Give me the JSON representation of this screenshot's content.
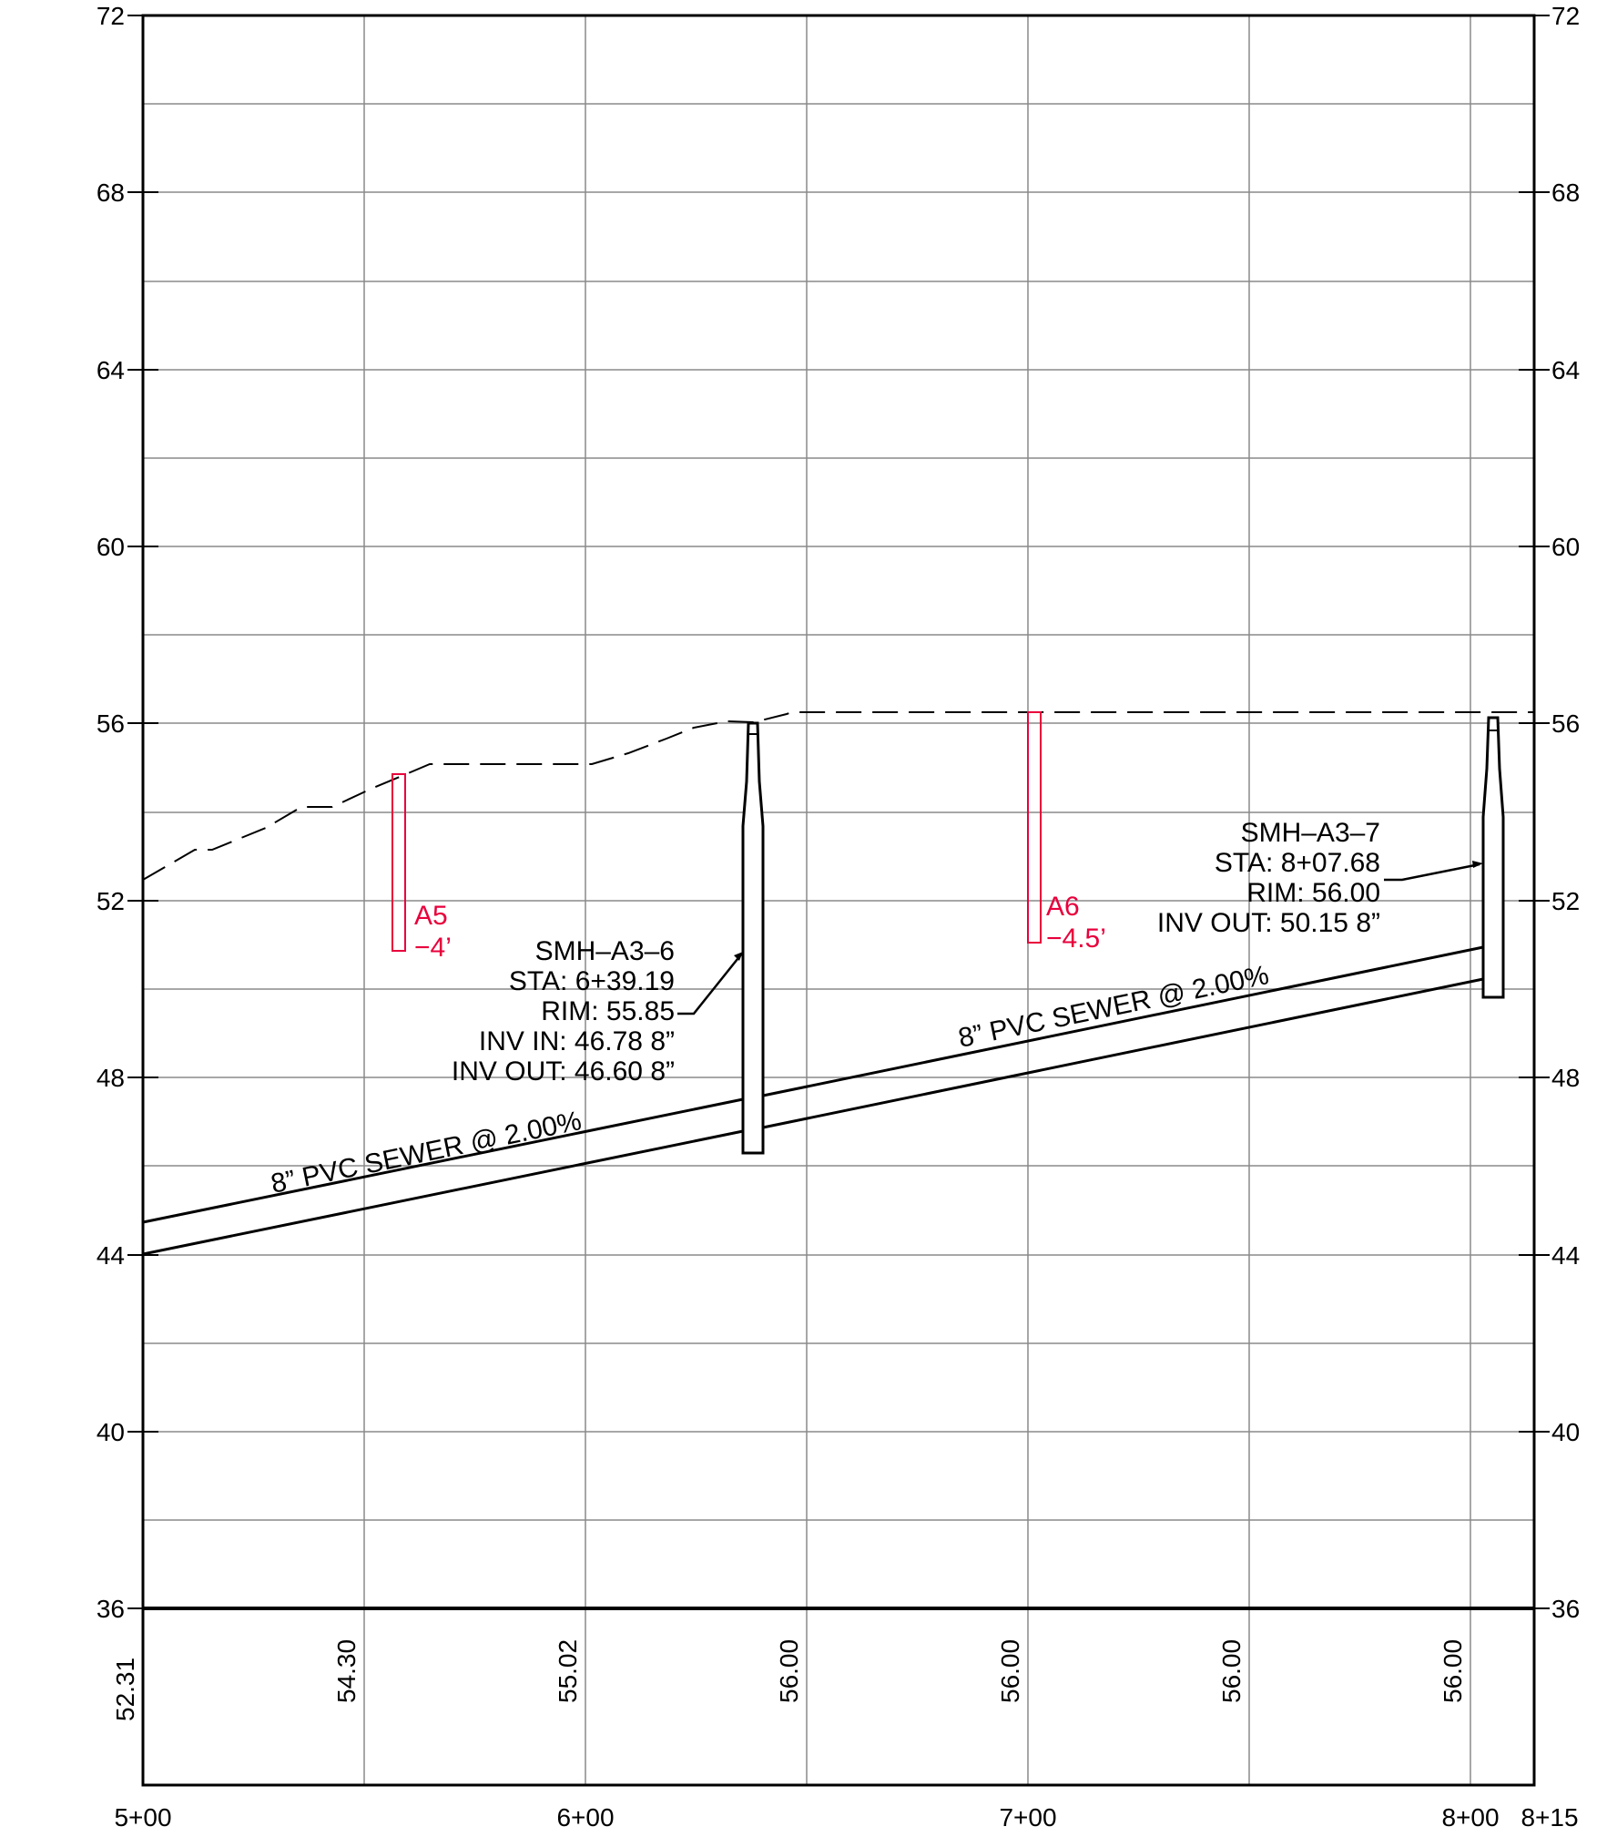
{
  "profile": {
    "elevation_labels_left": [
      "72",
      "68",
      "64",
      "60",
      "56",
      "52",
      "48",
      "44",
      "40",
      "36"
    ],
    "elevation_labels_right": [
      "72",
      "68",
      "64",
      "60",
      "56",
      "52",
      "48",
      "44",
      "40",
      "36"
    ],
    "station_labels": [
      "5+00",
      "6+00",
      "7+00",
      "8+00",
      "8+15"
    ],
    "ground_elevations": [
      "52.31",
      "54.30",
      "55.02",
      "56.00",
      "56.00",
      "56.00",
      "56.00"
    ],
    "pipe_label_lower": "8” PVC SEWER @ 2.00%",
    "pipe_label_upper": "8” PVC SEWER @ 2.00%",
    "manholes": [
      {
        "name": "SMH–A3–6",
        "sta": "STA: 6+39.19",
        "rim": "RIM: 55.85",
        "inv_in": "INV IN: 46.78  8”",
        "inv_out": "INV OUT: 46.60  8”"
      },
      {
        "name": "SMH–A3–7",
        "sta": "STA: 8+07.68",
        "rim": "RIM: 56.00",
        "inv_out": "INV OUT: 50.15  8”"
      }
    ],
    "borings": [
      {
        "id": "A5",
        "depth": "−4’"
      },
      {
        "id": "A6",
        "depth": "−4.5’"
      }
    ],
    "colors": {
      "linework": "#000000",
      "boring": "#e8003c",
      "grid": "#8a8a8a"
    }
  }
}
